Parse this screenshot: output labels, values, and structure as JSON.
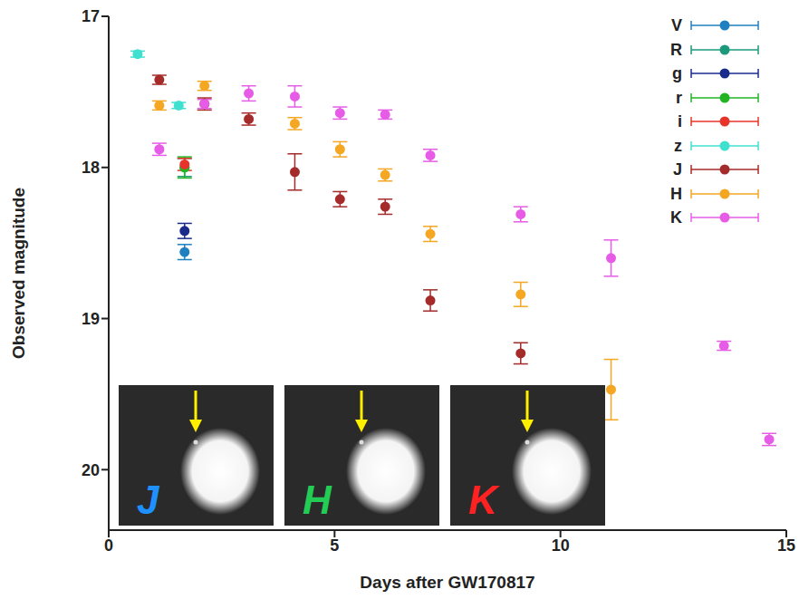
{
  "chart_data": {
    "type": "scatter",
    "x_label": "Days after GW170817",
    "y_label": "Observed magnitude",
    "xlim": [
      0,
      15
    ],
    "xticks": [
      0,
      5,
      10,
      15
    ],
    "ylim": [
      20.4,
      17
    ],
    "yticks": [
      17,
      18,
      19,
      20
    ],
    "legend": "upper right",
    "annotations": [
      "J",
      "H",
      "K"
    ],
    "series": [
      {
        "name": "V",
        "color": "#1f7fc0",
        "marker": "circle",
        "x": [
          1.68
        ],
        "values": [
          18.56
        ],
        "errors": [
          0.05
        ]
      },
      {
        "name": "R",
        "color": "#1a9a7a",
        "marker": "circle",
        "x": [
          1.68
        ],
        "values": [
          18.0
        ],
        "errors": [
          0.06
        ]
      },
      {
        "name": "g",
        "color": "#1a2a8c",
        "marker": "circle",
        "x": [
          1.68
        ],
        "values": [
          18.42
        ],
        "errors": [
          0.05
        ]
      },
      {
        "name": "r",
        "color": "#22b422",
        "marker": "circle",
        "x": [
          1.68
        ],
        "values": [
          18.0
        ],
        "errors": [
          0.07
        ]
      },
      {
        "name": "i",
        "color": "#e8332a",
        "marker": "circle",
        "x": [
          1.68
        ],
        "values": [
          17.98
        ],
        "errors": [
          0.04
        ]
      },
      {
        "name": "z",
        "color": "#40e0d0",
        "marker": "circle",
        "x": [
          0.64,
          1.55
        ],
        "values": [
          17.25,
          17.59
        ],
        "errors": [
          0.02,
          0.02
        ]
      },
      {
        "name": "J",
        "color": "#a52a2a",
        "marker": "circle",
        "x": [
          1.12,
          2.12,
          3.1,
          4.12,
          5.12,
          6.12,
          7.12,
          9.12
        ],
        "values": [
          17.42,
          17.58,
          17.68,
          18.03,
          18.21,
          18.26,
          18.88,
          19.23
        ],
        "errors": [
          0.03,
          0.04,
          0.04,
          0.12,
          0.05,
          0.05,
          0.07,
          0.07
        ]
      },
      {
        "name": "H",
        "color": "#f5a623",
        "marker": "circle",
        "x": [
          1.12,
          2.12,
          4.12,
          5.12,
          6.12,
          7.12,
          9.12,
          11.12
        ],
        "values": [
          17.59,
          17.46,
          17.71,
          17.88,
          18.05,
          18.44,
          18.84,
          19.47
        ],
        "errors": [
          0.03,
          0.03,
          0.04,
          0.05,
          0.04,
          0.05,
          0.08,
          0.2
        ]
      },
      {
        "name": "K",
        "color": "#e65ce6",
        "marker": "circle",
        "x": [
          1.12,
          2.12,
          3.1,
          4.12,
          5.12,
          6.12,
          7.12,
          9.12,
          11.12,
          13.62,
          14.62
        ],
        "values": [
          17.88,
          17.58,
          17.51,
          17.53,
          17.64,
          17.65,
          17.92,
          18.31,
          18.6,
          19.18,
          19.8
        ],
        "errors": [
          0.04,
          0.03,
          0.05,
          0.07,
          0.04,
          0.03,
          0.04,
          0.05,
          0.12,
          0.03,
          0.04
        ]
      }
    ]
  }
}
